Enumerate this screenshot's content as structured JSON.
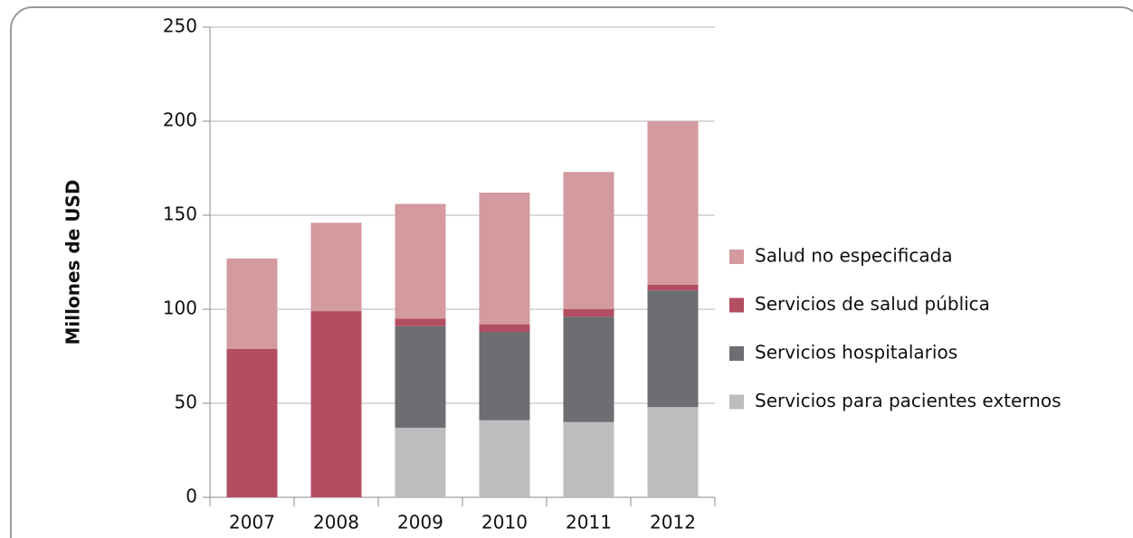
{
  "chart_data": {
    "type": "stacked_bar",
    "y_label": "Millones de USD",
    "categories": [
      "2007",
      "2008",
      "2009",
      "2010",
      "2011",
      "2012"
    ],
    "series": [
      {
        "name": "Servicios para pacientes externos",
        "color": "#bdbdbf",
        "values": [
          0,
          0,
          37,
          41,
          40,
          48
        ]
      },
      {
        "name": "Servicios hospitalarios",
        "color": "#6d6e71",
        "values": [
          0,
          0,
          54,
          47,
          56,
          62
        ]
      },
      {
        "name": "Servicios de salud pública",
        "color": "#b34d62",
        "values": [
          79,
          99,
          4,
          4,
          4,
          3
        ]
      },
      {
        "name": "Salud no especificada",
        "color": "#d39aa0",
        "values": [
          48,
          47,
          61,
          70,
          73,
          87
        ]
      }
    ],
    "ylim": [
      0,
      250
    ],
    "yticks": [
      0,
      50,
      100,
      150,
      200,
      250
    ],
    "grid": true,
    "legend": "right"
  }
}
